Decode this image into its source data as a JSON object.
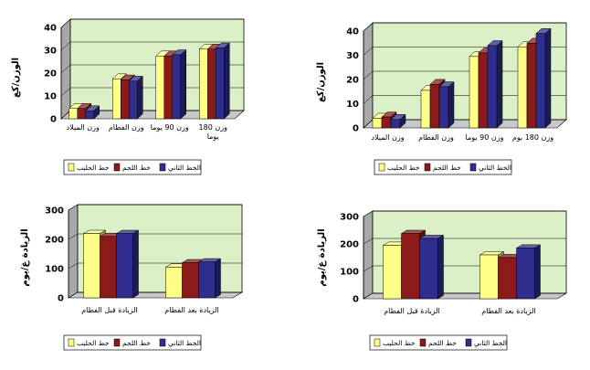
{
  "colors": {
    "series": [
      "#ffff88",
      "#8b1a1a",
      "#2e2e8c"
    ],
    "plot_bg": "#dcf0c8",
    "wall_side": "#a8a8a8",
    "floor": "#c8c8c8"
  },
  "chart_data": [
    {
      "type": "bar",
      "ylabel": "الوزن/كغ",
      "ylim": [
        0,
        40
      ],
      "yticks": [
        "0",
        "10",
        "20",
        "30",
        "40"
      ],
      "categories": [
        "وزن الميلاد",
        "وزن الفطام",
        "وزن 90 يوما",
        "وزن 180 يوما"
      ],
      "series": [
        {
          "name": "خط الحليب",
          "values": [
            4.5,
            17.5,
            27.5,
            30.5
          ]
        },
        {
          "name": "خط اللحم",
          "values": [
            4.5,
            17,
            27.5,
            30.5
          ]
        },
        {
          "name": "الخط الثاني",
          "values": [
            3.5,
            16.5,
            28,
            31
          ]
        }
      ],
      "legend": "bottom"
    },
    {
      "type": "bar",
      "ylabel": "الوزن/كغ",
      "ylim": [
        0,
        40
      ],
      "yticks": [
        "0",
        "10",
        "20",
        "30",
        "40"
      ],
      "categories": [
        "وزن الميلاد",
        "وزن الفطام",
        "وزن 90 يوما",
        "وزن 180 يوم"
      ],
      "series": [
        {
          "name": "خط الحليب",
          "values": [
            4,
            15.5,
            29.5,
            33.5
          ]
        },
        {
          "name": "خط اللحم",
          "values": [
            4.5,
            18,
            31,
            35
          ]
        },
        {
          "name": "الخط الثاني",
          "values": [
            3.5,
            17,
            34,
            39
          ]
        }
      ],
      "legend": "bottom"
    },
    {
      "type": "bar",
      "ylabel": "الزيادة غ/يوم",
      "ylim": [
        0,
        300
      ],
      "yticks": [
        "0",
        "100",
        "200",
        "300"
      ],
      "categories": [
        "الزيادة قبل الفطام",
        "الزيادة بعد الفطام"
      ],
      "series": [
        {
          "name": "خط الحليب",
          "values": [
            220,
            105
          ]
        },
        {
          "name": "خط اللحم",
          "values": [
            210,
            120
          ]
        },
        {
          "name": "الخط الثاني",
          "values": [
            220,
            123
          ]
        }
      ],
      "legend": "bottom"
    },
    {
      "type": "bar",
      "ylabel": "الزيادة غ/يوم",
      "ylim": [
        0,
        300
      ],
      "yticks": [
        "0",
        "100",
        "200",
        "300"
      ],
      "categories": [
        "الزيادة قبل الفطام",
        "الزيادة بعد الفطام"
      ],
      "series": [
        {
          "name": "خط الحليب",
          "values": [
            195,
            160
          ]
        },
        {
          "name": "خط اللحم",
          "values": [
            238,
            150
          ]
        },
        {
          "name": "الخط الثاني",
          "values": [
            220,
            185
          ]
        }
      ],
      "legend": "bottom"
    }
  ]
}
